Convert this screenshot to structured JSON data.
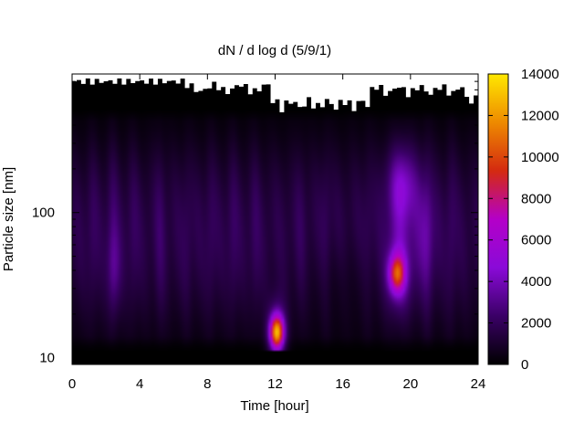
{
  "chart_data": {
    "type": "heatmap",
    "title": "dN / d log d (5/9/1)",
    "xlabel": "Time [hour]",
    "ylabel": "Particle size [nm]",
    "xlim": [
      0,
      24
    ],
    "ylim": [
      9,
      900
    ],
    "y_scale": "log",
    "x_ticks": [
      0,
      4,
      8,
      12,
      16,
      20,
      24
    ],
    "x_tick_labels": [
      "0",
      "4",
      "8",
      "12",
      "16",
      "20",
      "24"
    ],
    "y_ticks": [
      10,
      100
    ],
    "y_tick_labels": [
      "10",
      "100"
    ],
    "colorbar": {
      "min": 0,
      "max": 14000,
      "ticks": [
        0,
        2000,
        4000,
        6000,
        8000,
        10000,
        12000,
        14000
      ],
      "tick_labels": [
        "0",
        "2000",
        "4000",
        "6000",
        "8000",
        "10000",
        "12000",
        "14000"
      ],
      "colormap": [
        "#000000",
        "#3a0066",
        "#8a0ad8",
        "#b400c8",
        "#d42a10",
        "#ee8a00",
        "#ffe800"
      ]
    },
    "grid": false,
    "legend": "colorbar-right",
    "features": [
      {
        "time_hour": 12.1,
        "size_nm": 15,
        "value": 10000
      },
      {
        "time_hour": 19.2,
        "size_nm": 38,
        "value": 7000
      },
      {
        "time_hour": 19.5,
        "size_nm": 150,
        "value": 3500
      },
      {
        "time_hour": 2.5,
        "size_nm": 40,
        "value": 2500
      }
    ]
  }
}
